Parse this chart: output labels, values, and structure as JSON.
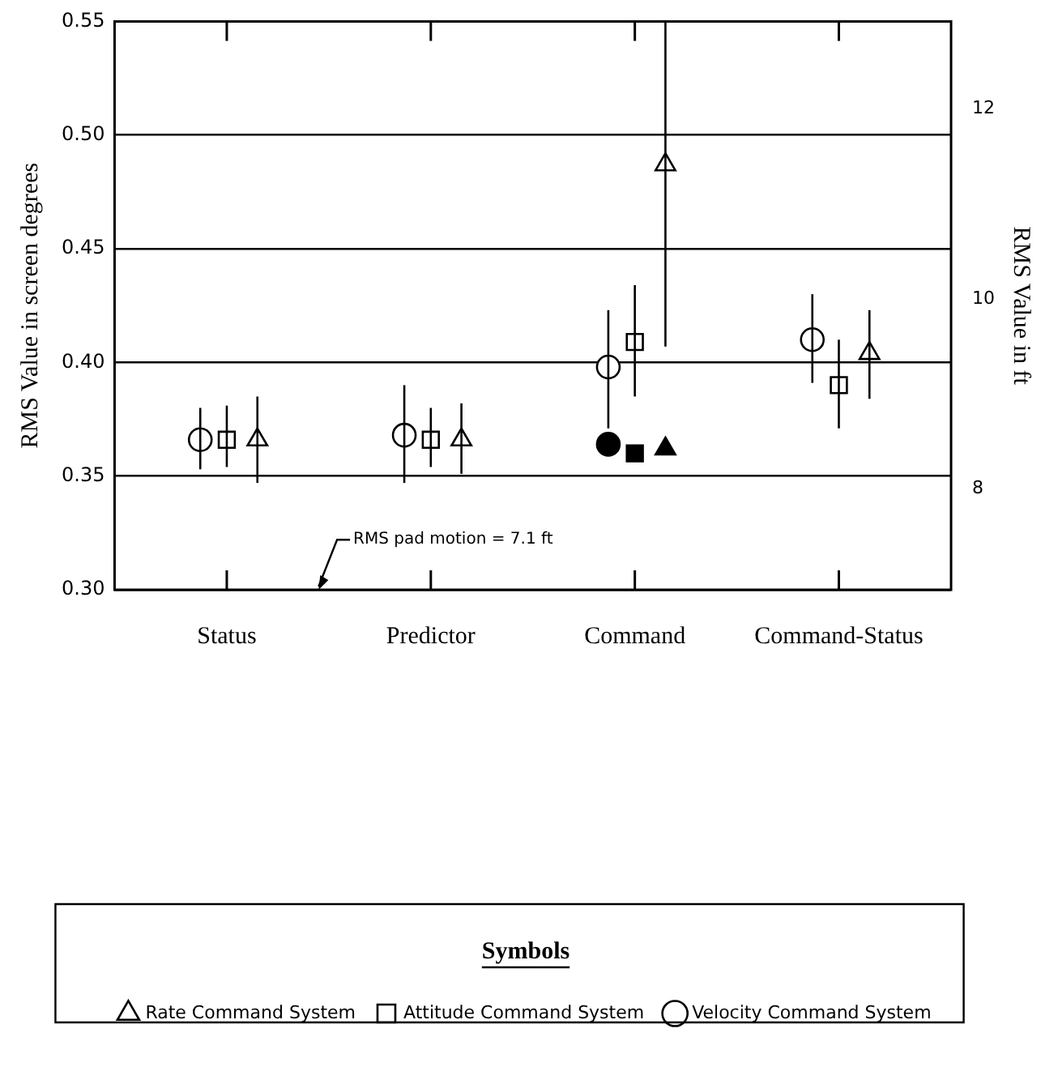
{
  "chart_data": {
    "type": "scatter",
    "ylabel": "RMS Value in screen degrees",
    "y2label": "RMS Value in ft",
    "legend_title": "Symbols",
    "categories": [
      "Status",
      "Predictor",
      "Command",
      "Command-Status"
    ],
    "ylim": [
      0.3,
      0.55
    ],
    "yticks": [
      {
        "value": 0.3,
        "label": "0.30"
      },
      0.35,
      {
        "value": 0.4,
        "label": "0.40"
      },
      0.45,
      {
        "value": 0.5,
        "label": "0.50"
      },
      0.55
    ],
    "y2lim": [
      6.94,
      12.92
    ],
    "y2ticks": [
      8,
      10,
      12
    ],
    "grid": "y",
    "legend": "bottom",
    "annotations": [
      "RMS pad motion = 7.1 ft"
    ],
    "series": [
      {
        "name": "Attitude Command System",
        "color": "#000000",
        "marker": "square",
        "values": [
          0.366,
          0.366,
          0.409,
          0.39
        ],
        "errors": [
          [
            0.354,
            0.381
          ],
          [
            0.354,
            0.38
          ],
          [
            0.385,
            0.434
          ],
          [
            0.371,
            0.41
          ]
        ]
      },
      {
        "name": "Velocity Command System",
        "color": "#000000",
        "marker": "circle",
        "values": [
          0.366,
          0.368,
          0.398,
          0.41
        ],
        "errors": [
          [
            0.353,
            0.38
          ],
          [
            0.347,
            0.39
          ],
          [
            0.371,
            0.423
          ],
          [
            0.391,
            0.43
          ]
        ]
      },
      {
        "name": "Rate Command System",
        "color": "#000000",
        "marker": "triangle",
        "values": [
          0.366,
          0.366,
          0.487,
          0.404
        ],
        "errors": [
          [
            0.347,
            0.385
          ],
          [
            0.351,
            0.382
          ],
          [
            0.407,
            0.55
          ],
          [
            0.384,
            0.423
          ]
        ]
      },
      {
        "color": "#000000",
        "marker": "square",
        "x": [
          "Command"
        ],
        "values": [
          0.36
        ]
      },
      {
        "color": "#000000",
        "marker": "circle",
        "x": [
          "Command"
        ],
        "values": [
          0.364
        ]
      },
      {
        "color": "#000000",
        "marker": "triangle",
        "x": [
          "Command"
        ],
        "values": [
          0.362
        ]
      }
    ]
  }
}
